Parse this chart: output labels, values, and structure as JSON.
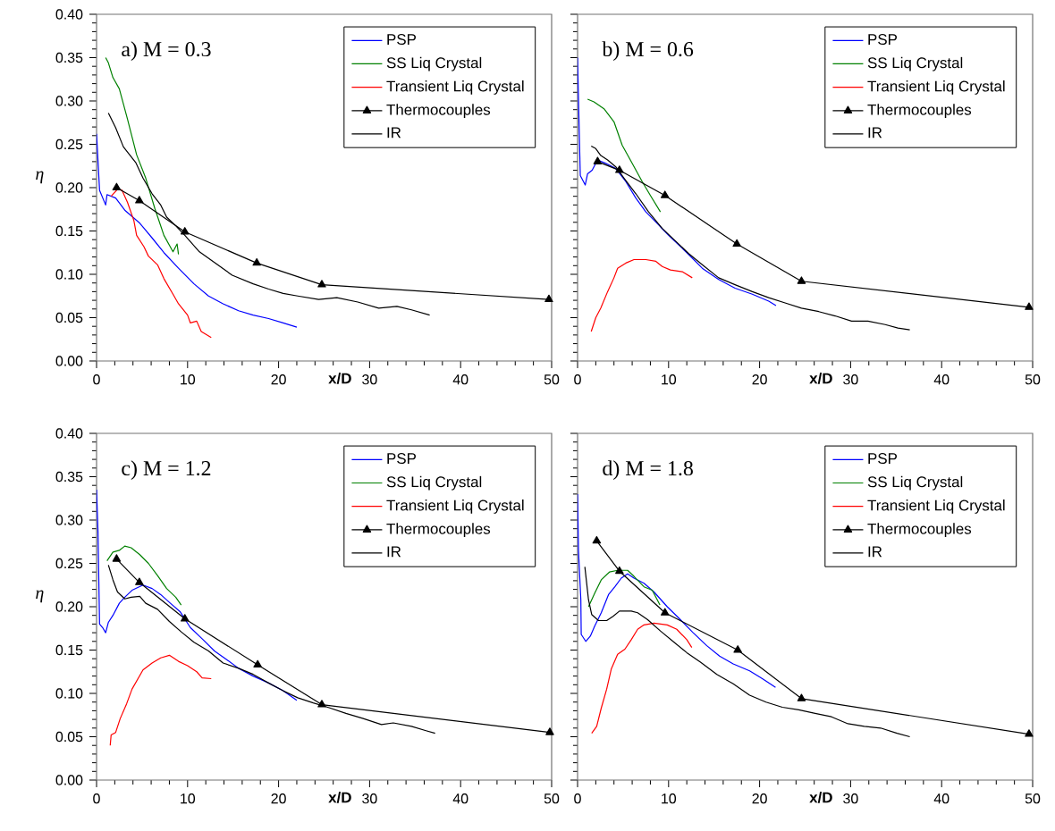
{
  "chart_data": [
    {
      "type": "line",
      "title": "a) M = 0.3",
      "xlabel": "x/D",
      "ylabel": "η",
      "xlim": [
        0,
        50
      ],
      "ylim": [
        0,
        0.4
      ],
      "xticks": [
        0,
        10,
        20,
        30,
        40,
        50
      ],
      "yticks": [
        {
          "value": 0,
          "label": "0.00"
        },
        {
          "value": 0.05,
          "label": "0.05"
        },
        {
          "value": 0.1,
          "label": "0.10"
        },
        {
          "value": 0.15,
          "label": "0.15"
        },
        {
          "value": 0.2,
          "label": "0.20"
        },
        {
          "value": 0.25,
          "label": "0.25"
        },
        {
          "value": 0.3,
          "label": "0.30"
        },
        {
          "value": 0.35,
          "label": "0.35"
        },
        {
          "value": 0.4,
          "label": "0.40"
        }
      ],
      "legend": "top right",
      "series": [
        {
          "name": "PSP",
          "color": "#0000ff",
          "x": [
            0,
            0.33,
            1.0,
            1.15,
            2.1,
            3.1,
            4.75,
            6.1,
            7.4,
            9.0,
            10.7,
            12.3,
            13.9,
            15.6,
            17.2,
            18.9,
            20.5,
            22.0
          ],
          "values": [
            0.262,
            0.197,
            0.18,
            0.192,
            0.188,
            0.174,
            0.159,
            0.142,
            0.125,
            0.107,
            0.089,
            0.075,
            0.066,
            0.058,
            0.053,
            0.049,
            0.044,
            0.039
          ]
        },
        {
          "name": "SS Liq Crystal",
          "color": "#008000",
          "x": [
            1.0,
            1.3,
            1.8,
            2.5,
            3.4,
            4.4,
            5.4,
            6.4,
            7.4,
            8.4,
            8.85,
            9.0
          ],
          "values": [
            0.35,
            0.344,
            0.327,
            0.314,
            0.279,
            0.238,
            0.211,
            0.176,
            0.145,
            0.126,
            0.135,
            0.123
          ]
        },
        {
          "name": "Transient Liq Crystal",
          "color": "#ff0000",
          "x": [
            1.6,
            2.3,
            2.8,
            3.4,
            4.1,
            4.4,
            5.2,
            5.7,
            6.7,
            7.4,
            8.4,
            9.0,
            10.0,
            10.3,
            11.0,
            11.5,
            12.6
          ],
          "values": [
            0.19,
            0.198,
            0.197,
            0.183,
            0.162,
            0.145,
            0.132,
            0.121,
            0.111,
            0.095,
            0.077,
            0.066,
            0.053,
            0.044,
            0.046,
            0.034,
            0.027
          ]
        },
        {
          "name": "Thermocouples",
          "color": "#000000",
          "marker": "triangle",
          "x": [
            2.2,
            4.7,
            9.7,
            17.6,
            24.75,
            49.7
          ],
          "values": [
            0.2,
            0.185,
            0.149,
            0.113,
            0.088,
            0.071
          ]
        },
        {
          "name": "IR",
          "color": "#000000",
          "x": [
            1.3,
            2.1,
            2.95,
            4.3,
            5.1,
            6.1,
            7.05,
            7.7,
            8.7,
            9.7,
            11.3,
            13.3,
            14.9,
            17.2,
            18.9,
            20.5,
            22.1,
            24.4,
            26.4,
            28.7,
            31.0,
            33.0,
            34.6,
            36.6
          ],
          "values": [
            0.286,
            0.269,
            0.247,
            0.229,
            0.211,
            0.193,
            0.18,
            0.166,
            0.156,
            0.145,
            0.126,
            0.111,
            0.099,
            0.089,
            0.083,
            0.078,
            0.075,
            0.071,
            0.073,
            0.068,
            0.061,
            0.063,
            0.059,
            0.053
          ]
        }
      ]
    },
    {
      "type": "line",
      "title": "b) M = 0.6",
      "xlabel": "x/D",
      "xlim": [
        0,
        50
      ],
      "ylim": [
        0,
        0.4
      ],
      "xticks": [
        0,
        10,
        20,
        30,
        40,
        50
      ],
      "yticks": [
        0,
        0.05,
        0.1,
        0.15,
        0.2,
        0.25,
        0.3,
        0.35,
        0.4
      ],
      "legend": "top right",
      "tick_labels": "x",
      "series": [
        {
          "name": "PSP",
          "color": "#0000ff",
          "x": [
            0,
            0.1,
            0.3,
            0.84,
            1.1,
            1.6,
            2.2,
            3.1,
            4.2,
            5.3,
            6.4,
            7.5,
            8.9,
            10.0,
            11.9,
            13.7,
            15.5,
            17.3,
            19.2,
            21.0,
            21.8
          ],
          "values": [
            0.35,
            0.302,
            0.214,
            0.203,
            0.216,
            0.22,
            0.232,
            0.228,
            0.222,
            0.207,
            0.188,
            0.172,
            0.157,
            0.145,
            0.126,
            0.107,
            0.094,
            0.084,
            0.077,
            0.069,
            0.064
          ]
        },
        {
          "name": "SS Liq Crystal",
          "color": "#008000",
          "x": [
            1.1,
            1.8,
            2.9,
            4.0,
            4.9,
            6.0,
            7.1,
            8.0,
            9.1
          ],
          "values": [
            0.302,
            0.299,
            0.291,
            0.276,
            0.249,
            0.228,
            0.207,
            0.191,
            0.172
          ]
        },
        {
          "name": "Transient Liq Crystal",
          "color": "#ff0000",
          "x": [
            1.5,
            2.0,
            2.55,
            3.3,
            4.0,
            4.4,
            5.3,
            6.2,
            7.5,
            8.6,
            9.3,
            10.2,
            11.5,
            12.6
          ],
          "values": [
            0.034,
            0.05,
            0.061,
            0.08,
            0.096,
            0.107,
            0.113,
            0.117,
            0.117,
            0.115,
            0.109,
            0.105,
            0.103,
            0.096
          ]
        },
        {
          "name": "Thermocouples",
          "color": "#000000",
          "marker": "triangle",
          "x": [
            2.2,
            4.6,
            9.6,
            17.5,
            24.6,
            49.6
          ],
          "values": [
            0.23,
            0.22,
            0.191,
            0.135,
            0.092,
            0.062
          ]
        },
        {
          "name": "IR",
          "color": "#000000",
          "x": [
            1.5,
            2.0,
            2.55,
            3.3,
            4.2,
            5.1,
            6.4,
            7.8,
            9.3,
            10.8,
            12.2,
            13.7,
            15.5,
            17.3,
            19.2,
            21.0,
            22.8,
            24.6,
            26.5,
            28.3,
            30.1,
            31.9,
            33.8,
            35.2,
            36.5
          ],
          "values": [
            0.248,
            0.245,
            0.237,
            0.232,
            0.224,
            0.211,
            0.193,
            0.172,
            0.153,
            0.138,
            0.124,
            0.111,
            0.096,
            0.088,
            0.08,
            0.073,
            0.067,
            0.061,
            0.057,
            0.052,
            0.046,
            0.046,
            0.042,
            0.038,
            0.036
          ]
        }
      ]
    },
    {
      "type": "line",
      "title": "c) M = 1.2",
      "xlabel": "x/D",
      "ylabel": "η",
      "xlim": [
        0,
        50
      ],
      "ylim": [
        0,
        0.4
      ],
      "xticks": [
        0,
        10,
        20,
        30,
        40,
        50
      ],
      "yticks": [
        {
          "value": 0,
          "label": "0.00"
        },
        {
          "value": 0.05,
          "label": "0.05"
        },
        {
          "value": 0.1,
          "label": "0.10"
        },
        {
          "value": 0.15,
          "label": "0.15"
        },
        {
          "value": 0.2,
          "label": "0.20"
        },
        {
          "value": 0.25,
          "label": "0.25"
        },
        {
          "value": 0.3,
          "label": "0.30"
        },
        {
          "value": 0.35,
          "label": "0.35"
        },
        {
          "value": 0.4,
          "label": "0.40"
        }
      ],
      "legend": "top right",
      "series": [
        {
          "name": "PSP",
          "color": "#0000ff",
          "x": [
            0,
            0.16,
            0.33,
            0.66,
            1.0,
            1.3,
            1.8,
            2.5,
            3.1,
            3.9,
            5.1,
            6.1,
            7.05,
            8.0,
            9.2,
            10.3,
            11.6,
            12.95,
            14.3,
            15.6,
            17.2,
            18.9,
            20.5,
            22.0
          ],
          "values": [
            0.335,
            0.286,
            0.18,
            0.176,
            0.17,
            0.182,
            0.19,
            0.204,
            0.211,
            0.219,
            0.225,
            0.221,
            0.214,
            0.205,
            0.194,
            0.176,
            0.163,
            0.149,
            0.139,
            0.129,
            0.12,
            0.112,
            0.103,
            0.092
          ]
        },
        {
          "name": "SS Liq Crystal",
          "color": "#008000",
          "x": [
            1.15,
            1.8,
            2.5,
            3.1,
            3.8,
            4.75,
            5.7,
            6.7,
            7.7,
            8.7,
            9.3
          ],
          "values": [
            0.253,
            0.263,
            0.265,
            0.27,
            0.268,
            0.26,
            0.25,
            0.236,
            0.221,
            0.211,
            0.202
          ]
        },
        {
          "name": "Transient Liq Crystal",
          "color": "#ff0000",
          "x": [
            1.5,
            1.6,
            2.1,
            2.6,
            3.3,
            3.9,
            5.1,
            6.1,
            7.05,
            8.0,
            9.0,
            10.0,
            11.0,
            11.6,
            12.6
          ],
          "values": [
            0.04,
            0.052,
            0.055,
            0.071,
            0.088,
            0.105,
            0.127,
            0.135,
            0.141,
            0.144,
            0.137,
            0.132,
            0.125,
            0.118,
            0.117
          ]
        },
        {
          "name": "Thermocouples",
          "color": "#000000",
          "marker": "triangle",
          "x": [
            2.2,
            4.7,
            9.7,
            17.7,
            24.75,
            49.8
          ],
          "values": [
            0.255,
            0.228,
            0.186,
            0.133,
            0.087,
            0.055
          ]
        },
        {
          "name": "IR",
          "color": "#000000",
          "x": [
            1.3,
            1.8,
            2.3,
            3.1,
            3.8,
            4.75,
            5.4,
            6.7,
            8.0,
            9.3,
            10.7,
            12.3,
            13.9,
            15.6,
            17.2,
            18.9,
            20.5,
            22.1,
            23.8,
            25.4,
            27.4,
            29.3,
            31.3,
            32.6,
            34.6,
            36.2,
            37.2
          ],
          "values": [
            0.248,
            0.231,
            0.217,
            0.209,
            0.211,
            0.212,
            0.204,
            0.197,
            0.183,
            0.171,
            0.159,
            0.149,
            0.135,
            0.129,
            0.122,
            0.112,
            0.103,
            0.095,
            0.089,
            0.084,
            0.077,
            0.071,
            0.064,
            0.066,
            0.062,
            0.057,
            0.054
          ]
        }
      ]
    },
    {
      "type": "line",
      "title": "d) M = 1.8",
      "xlabel": "x/D",
      "xlim": [
        0,
        50
      ],
      "ylim": [
        0,
        0.4
      ],
      "xticks": [
        0,
        10,
        20,
        30,
        40,
        50
      ],
      "yticks": [
        0,
        0.05,
        0.1,
        0.15,
        0.2,
        0.25,
        0.3,
        0.35,
        0.4
      ],
      "legend": "top right",
      "tick_labels": "x",
      "series": [
        {
          "name": "PSP",
          "color": "#0000ff",
          "x": [
            0,
            0.1,
            0.36,
            0.4,
            0.9,
            1.4,
            1.9,
            2.6,
            3.4,
            4.1,
            4.8,
            5.5,
            6.2,
            7.3,
            8.4,
            9.85,
            11.3,
            12.7,
            14.2,
            15.6,
            17.1,
            18.9,
            20.3,
            21.75
          ],
          "values": [
            0.33,
            0.265,
            0.208,
            0.168,
            0.16,
            0.166,
            0.178,
            0.193,
            0.214,
            0.223,
            0.233,
            0.238,
            0.233,
            0.227,
            0.217,
            0.2,
            0.185,
            0.17,
            0.155,
            0.143,
            0.134,
            0.126,
            0.117,
            0.107
          ]
        },
        {
          "name": "SS Liq Crystal",
          "color": "#008000",
          "x": [
            1.2,
            1.9,
            2.6,
            3.5,
            4.4,
            5.5,
            6.2,
            7.3,
            8.2,
            9.05
          ],
          "values": [
            0.2,
            0.216,
            0.231,
            0.24,
            0.242,
            0.242,
            0.235,
            0.223,
            0.219,
            0.202
          ]
        },
        {
          "name": "Transient Liq Crystal",
          "color": "#ff0000",
          "x": [
            1.55,
            2.1,
            2.6,
            3.2,
            3.7,
            4.4,
            5.2,
            5.9,
            6.6,
            7.3,
            8.4,
            9.85,
            10.9,
            12.0,
            12.55
          ],
          "values": [
            0.054,
            0.062,
            0.083,
            0.105,
            0.128,
            0.145,
            0.151,
            0.162,
            0.174,
            0.179,
            0.181,
            0.179,
            0.174,
            0.162,
            0.153
          ]
        },
        {
          "name": "Thermocouples",
          "color": "#000000",
          "marker": "triangle",
          "x": [
            2.1,
            4.6,
            9.6,
            17.6,
            24.6,
            49.6
          ],
          "values": [
            0.276,
            0.241,
            0.193,
            0.15,
            0.094,
            0.053
          ]
        },
        {
          "name": "IR",
          "color": "#000000",
          "x": [
            0.8,
            1.2,
            1.55,
            2.3,
            3.2,
            3.9,
            4.6,
            5.9,
            6.6,
            7.7,
            9.1,
            10.6,
            12.0,
            13.5,
            15.3,
            17.1,
            18.9,
            20.7,
            22.5,
            24.3,
            26.1,
            27.9,
            29.7,
            31.5,
            33.3,
            35.1,
            36.5
          ],
          "values": [
            0.246,
            0.208,
            0.191,
            0.184,
            0.184,
            0.189,
            0.195,
            0.195,
            0.193,
            0.185,
            0.172,
            0.159,
            0.147,
            0.136,
            0.122,
            0.111,
            0.098,
            0.09,
            0.084,
            0.081,
            0.077,
            0.073,
            0.065,
            0.062,
            0.06,
            0.054,
            0.05
          ]
        }
      ]
    }
  ]
}
